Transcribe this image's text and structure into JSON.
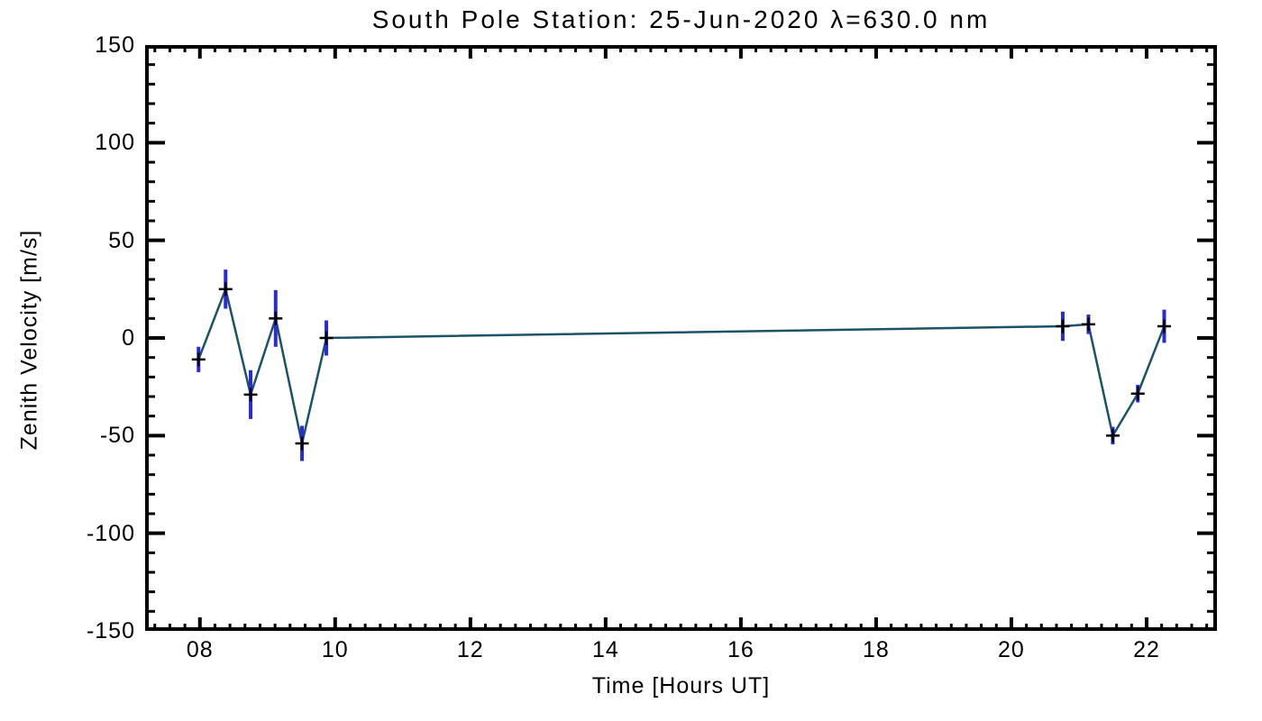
{
  "chart_data": {
    "type": "line",
    "title": "South Pole Station: 25-Jun-2020 λ=630.0 nm",
    "xlabel": "Time [Hours UT]",
    "ylabel": "Zenith Velocity [m/s]",
    "xlim": [
      7.19,
      23.04
    ],
    "ylim": [
      -150,
      150
    ],
    "x_major_ticks": [
      8,
      10,
      12,
      14,
      16,
      18,
      20,
      22
    ],
    "x_tick_labels": [
      "08",
      "10",
      "12",
      "14",
      "16",
      "18",
      "20",
      "22"
    ],
    "x_minor_divisions": 9,
    "y_major_ticks": [
      150,
      100,
      50,
      0,
      -50,
      -100,
      -150
    ],
    "y_tick_labels": [
      "150",
      "100",
      "50",
      "0",
      "-50",
      "-100",
      "-150"
    ],
    "y_minor_step": 10,
    "grid": false,
    "legend": false,
    "series": [
      {
        "name": "zenith-velocity",
        "marker": "plus",
        "x": [
          7.98,
          8.38,
          8.75,
          9.12,
          9.51,
          9.87,
          20.76,
          21.14,
          21.5,
          21.87,
          22.26
        ],
        "y": [
          -11,
          25,
          -29,
          10,
          -54,
          0,
          6,
          7,
          -50,
          -28.5,
          6
        ],
        "yerr": [
          6.5,
          10,
          12.5,
          14.5,
          9,
          9,
          7.5,
          5,
          4.5,
          4.5,
          8.5
        ]
      }
    ],
    "colors": {
      "line": "#1b5268",
      "error_bar": "#2b2bd4",
      "marker": "#000000",
      "axis": "#000000",
      "background": "#ffffff"
    }
  }
}
